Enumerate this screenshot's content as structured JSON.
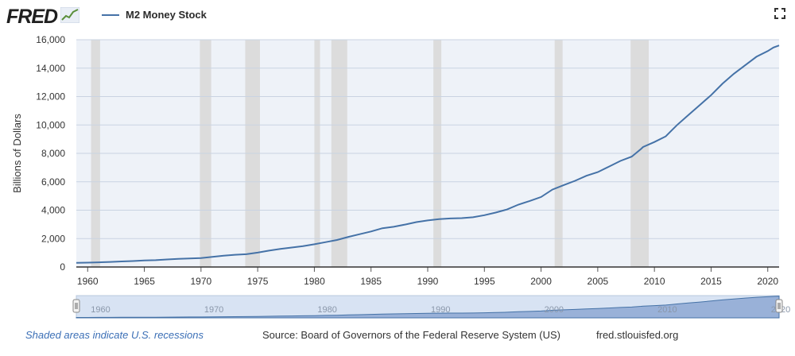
{
  "brand": {
    "name": "FRED",
    "badge_icon": "chart-line-icon"
  },
  "legend": {
    "series_name": "M2 Money Stock",
    "color": "#4572a7"
  },
  "toolbar": {
    "fullscreen_icon": "fullscreen-icon"
  },
  "footer": {
    "note": "Shaded areas indicate U.S. recessions",
    "source": "Source: Board of Governors of the Federal Reserve System (US)",
    "url": "fred.stlouisfed.org"
  },
  "chart_data": {
    "type": "line",
    "title": "",
    "ylabel": "Billions of Dollars",
    "xlabel": "",
    "xlim": [
      1959.0,
      2021.0
    ],
    "ylim": [
      0,
      16000
    ],
    "y_ticks": [
      0,
      2000,
      4000,
      6000,
      8000,
      10000,
      12000,
      14000,
      16000
    ],
    "y_tick_labels": [
      "0",
      "2,000",
      "4,000",
      "6,000",
      "8,000",
      "10,000",
      "12,000",
      "14,000",
      "16,000"
    ],
    "x_ticks": [
      1960,
      1965,
      1970,
      1975,
      1980,
      1985,
      1990,
      1995,
      2000,
      2005,
      2010,
      2015,
      2020
    ],
    "x_tick_labels": [
      "1960",
      "1965",
      "1970",
      "1975",
      "1980",
      "1985",
      "1990",
      "1995",
      "2000",
      "2005",
      "2010",
      "2015",
      "2020"
    ],
    "grid": true,
    "legend_position": "top-left",
    "recessions": [
      [
        1960.3,
        1961.1
      ],
      [
        1969.9,
        1970.9
      ],
      [
        1973.9,
        1975.2
      ],
      [
        1980.0,
        1980.5
      ],
      [
        1981.5,
        1982.9
      ],
      [
        1990.5,
        1991.2
      ],
      [
        2001.2,
        2001.9
      ],
      [
        2007.9,
        2009.5
      ]
    ],
    "series": [
      {
        "name": "M2 Money Stock",
        "color": "#4572a7",
        "x": [
          1959,
          1960,
          1961,
          1962,
          1963,
          1964,
          1965,
          1966,
          1967,
          1968,
          1969,
          1970,
          1971,
          1972,
          1973,
          1974,
          1975,
          1976,
          1977,
          1978,
          1979,
          1980,
          1981,
          1982,
          1983,
          1984,
          1985,
          1986,
          1987,
          1988,
          1989,
          1990,
          1991,
          1992,
          1993,
          1994,
          1995,
          1996,
          1997,
          1998,
          1999,
          2000,
          2001,
          2002,
          2003,
          2004,
          2005,
          2006,
          2007,
          2008,
          2008.8,
          2009,
          2010,
          2011,
          2011.5,
          2012,
          2013,
          2014,
          2015,
          2016,
          2017,
          2018,
          2019,
          2020,
          2020.5,
          2021
        ],
        "values": [
          290,
          310,
          330,
          360,
          390,
          420,
          460,
          480,
          530,
          570,
          600,
          630,
          710,
          800,
          860,
          900,
          1010,
          1150,
          1270,
          1370,
          1470,
          1600,
          1750,
          1900,
          2120,
          2310,
          2500,
          2730,
          2830,
          2990,
          3160,
          3280,
          3370,
          3420,
          3440,
          3500,
          3650,
          3830,
          4050,
          4390,
          4650,
          4930,
          5450,
          5770,
          6070,
          6420,
          6680,
          7070,
          7470,
          7770,
          8300,
          8450,
          8800,
          9200,
          9600,
          10000,
          10700,
          11400,
          12100,
          12900,
          13600,
          14200,
          14800,
          15200,
          15450,
          15600
        ]
      }
    ]
  },
  "navigator": {
    "labels": [
      "1960",
      "1970",
      "1980",
      "1990",
      "2000",
      "2010",
      "2020"
    ]
  }
}
